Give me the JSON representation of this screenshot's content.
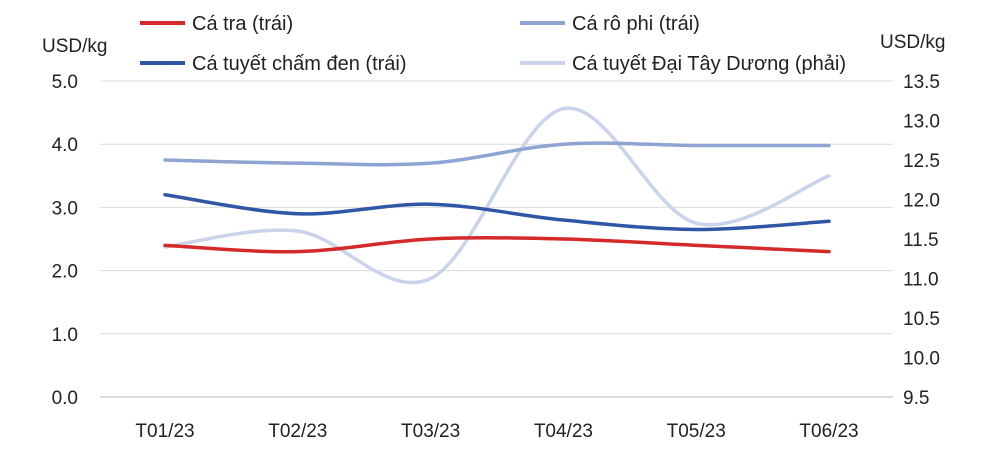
{
  "chart_data": {
    "type": "line",
    "title": "",
    "categories": [
      "T01/23",
      "T02/23",
      "T03/23",
      "T04/23",
      "T05/23",
      "T06/23"
    ],
    "y_left": {
      "label": "USD/kg",
      "min": 0,
      "max": 5,
      "step": 1,
      "ticks": [
        "0.0",
        "1.0",
        "2.0",
        "3.0",
        "4.0",
        "5.0"
      ]
    },
    "y_right": {
      "label": "USD/kg",
      "min": 9.5,
      "max": 13.5,
      "step": 0.5,
      "ticks": [
        "9.5",
        "10.0",
        "10.5",
        "11.0",
        "11.5",
        "12.0",
        "12.5",
        "13.0",
        "13.5"
      ]
    },
    "grid": "horizontal",
    "legend_position": "top",
    "series": [
      {
        "name": "Cá tra (trái)",
        "axis": "left",
        "color": "#d42a2a",
        "values": [
          2.4,
          2.3,
          2.5,
          2.5,
          2.4,
          2.3
        ]
      },
      {
        "name": "Cá rô phi (trái)",
        "axis": "left",
        "color": "#8ea4d2",
        "values": [
          3.75,
          3.7,
          3.7,
          4.0,
          3.98,
          3.98
        ]
      },
      {
        "name": "Cá tuyết chấm đen (trái)",
        "axis": "left",
        "color": "#2f57a5",
        "values": [
          3.2,
          2.9,
          3.05,
          2.8,
          2.65,
          2.78
        ]
      },
      {
        "name": "Cá tuyết Đại Tây Dương (phải)",
        "axis": "right",
        "color": "#c9d3ea",
        "values": [
          11.4,
          11.6,
          11.0,
          13.15,
          11.7,
          12.3
        ]
      }
    ]
  }
}
